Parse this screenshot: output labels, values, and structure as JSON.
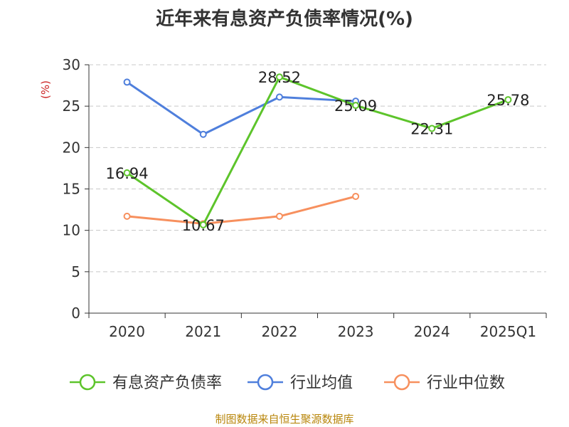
{
  "chart_data": {
    "type": "line",
    "title": "近年来有息资产负债率情况(%)",
    "ylabel": "(%)",
    "xlabel": "",
    "categories": [
      "2020",
      "2021",
      "2022",
      "2023",
      "2024",
      "2025Q1"
    ],
    "ylim": [
      0,
      30
    ],
    "yticks": [
      0,
      5,
      10,
      15,
      20,
      25,
      30
    ],
    "grid": true,
    "legend_position": "bottom",
    "series": [
      {
        "name": "有息资产负债率",
        "color": "#5dc42b",
        "values": [
          16.94,
          10.67,
          28.52,
          25.09,
          22.31,
          25.78
        ],
        "labels": [
          "16.94",
          "10.67",
          "28.52",
          "25.09",
          "22.31",
          "25.78"
        ]
      },
      {
        "name": "行业均值",
        "color": "#4f7fdc",
        "values": [
          27.9,
          21.6,
          26.1,
          25.6,
          null,
          null
        ]
      },
      {
        "name": "行业中位数",
        "color": "#f7905e",
        "values": [
          11.7,
          10.8,
          11.7,
          14.1,
          null,
          null
        ]
      }
    ]
  },
  "source": "制图数据来自恒生聚源数据库"
}
